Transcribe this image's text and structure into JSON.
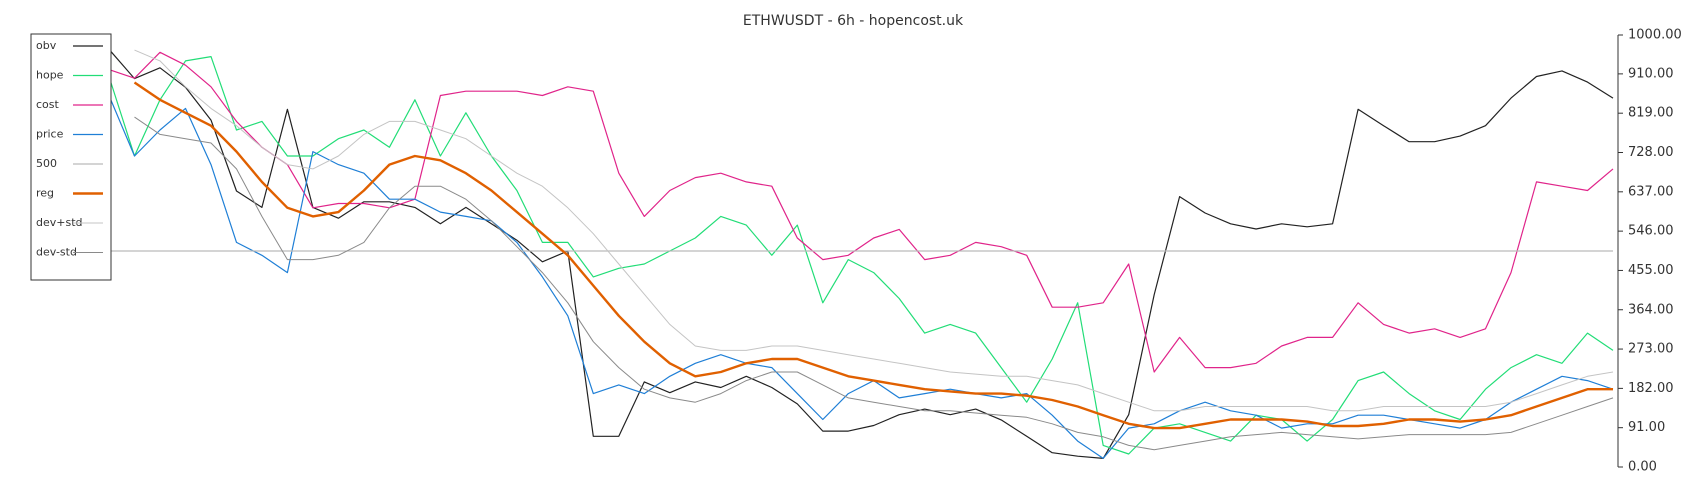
{
  "chart_data": {
    "type": "line",
    "title": "ETHWUSDT - 6h - hopencost.uk",
    "ylim": [
      0,
      1000
    ],
    "yticks": [
      {
        "value": 0,
        "label": "0.00"
      },
      {
        "value": 91,
        "label": "91.00"
      },
      {
        "value": 182,
        "label": "182.00"
      },
      {
        "value": 273,
        "label": "273.00"
      },
      {
        "value": 364,
        "label": "364.00"
      },
      {
        "value": 455,
        "label": "455.00"
      },
      {
        "value": 546,
        "label": "546.00"
      },
      {
        "value": 637,
        "label": "637.00"
      },
      {
        "value": 728,
        "label": "728.00"
      },
      {
        "value": 819,
        "label": "819.00"
      },
      {
        "value": 910,
        "label": "910.00"
      },
      {
        "value": 1000,
        "label": "1000.00"
      }
    ],
    "legend": "upper left",
    "series": [
      {
        "name": "obv",
        "color": "#222222",
        "width": 1.2,
        "values": [
          967,
          899,
          924,
          879,
          803,
          639,
          601,
          828,
          601,
          576,
          614,
          614,
          601,
          563,
          601,
          563,
          525,
          475,
          500,
          71,
          71,
          197,
          172,
          197,
          184,
          210,
          184,
          146,
          83,
          83,
          96,
          121,
          134,
          121,
          134,
          109,
          71,
          33,
          25,
          20,
          121,
          399,
          626,
          588,
          563,
          551,
          563,
          556,
          563,
          828,
          790,
          753,
          753,
          766,
          790,
          854,
          904,
          917,
          891,
          854
        ]
      },
      {
        "name": "hope",
        "color": "#22dd77",
        "width": 1.2,
        "values": [
          904,
          720,
          850,
          940,
          950,
          780,
          800,
          720,
          720,
          760,
          780,
          740,
          850,
          720,
          820,
          720,
          640,
          520,
          520,
          440,
          460,
          470,
          500,
          530,
          580,
          560,
          490,
          560,
          380,
          480,
          450,
          390,
          310,
          330,
          310,
          230,
          150,
          250,
          380,
          50,
          30,
          90,
          100,
          80,
          60,
          120,
          110,
          60,
          110,
          200,
          220,
          170,
          130,
          110,
          180,
          230,
          260,
          240,
          310,
          270
        ]
      },
      {
        "name": "cost",
        "color": "#e0248a",
        "width": 1.2,
        "values": [
          920,
          900,
          960,
          930,
          880,
          800,
          740,
          700,
          600,
          610,
          610,
          600,
          620,
          860,
          870,
          870,
          870,
          860,
          880,
          870,
          680,
          580,
          640,
          670,
          680,
          660,
          650,
          530,
          480,
          490,
          530,
          550,
          480,
          490,
          520,
          510,
          490,
          370,
          370,
          380,
          470,
          220,
          300,
          230,
          230,
          240,
          280,
          300,
          300,
          380,
          330,
          310,
          320,
          300,
          320,
          450,
          660,
          650,
          640,
          690
        ]
      },
      {
        "name": "price",
        "color": "#1f7fd6",
        "width": 1.2,
        "values": [
          860,
          720,
          780,
          830,
          700,
          520,
          490,
          450,
          730,
          700,
          680,
          620,
          620,
          590,
          580,
          570,
          520,
          440,
          350,
          170,
          190,
          170,
          210,
          240,
          260,
          240,
          230,
          170,
          110,
          170,
          200,
          160,
          170,
          180,
          170,
          160,
          170,
          120,
          60,
          20,
          90,
          100,
          130,
          150,
          130,
          120,
          90,
          100,
          100,
          120,
          120,
          110,
          100,
          90,
          110,
          150,
          180,
          210,
          200,
          180
        ]
      },
      {
        "name": "500",
        "color": "#bbbbbb",
        "width": 1.2,
        "values": [
          500,
          500,
          500,
          500,
          500,
          500,
          500,
          500,
          500,
          500,
          500,
          500,
          500,
          500,
          500,
          500,
          500,
          500,
          500,
          500,
          500,
          500,
          500,
          500,
          500,
          500,
          500,
          500,
          500,
          500,
          500,
          500,
          500,
          500,
          500,
          500,
          500,
          500,
          500,
          500,
          500,
          500,
          500,
          500,
          500,
          500,
          500,
          500,
          500,
          500,
          500,
          500,
          500,
          500,
          500,
          500,
          500,
          500,
          500,
          500
        ]
      },
      {
        "name": "reg",
        "color": "#e06000",
        "width": 2.4,
        "values": [
          null,
          890,
          850,
          820,
          790,
          730,
          660,
          600,
          580,
          590,
          640,
          700,
          720,
          710,
          680,
          640,
          590,
          540,
          490,
          420,
          350,
          290,
          240,
          210,
          220,
          240,
          250,
          250,
          230,
          210,
          200,
          190,
          180,
          175,
          170,
          170,
          165,
          155,
          140,
          120,
          100,
          90,
          90,
          100,
          110,
          110,
          110,
          105,
          95,
          95,
          100,
          110,
          110,
          105,
          110,
          120,
          140,
          160,
          180,
          180
        ]
      },
      {
        "name": "dev+std",
        "color": "#c4c4c4",
        "width": 1,
        "values": [
          null,
          965,
          940,
          880,
          830,
          790,
          740,
          700,
          690,
          720,
          770,
          800,
          800,
          780,
          760,
          720,
          680,
          650,
          600,
          540,
          470,
          400,
          330,
          280,
          270,
          270,
          280,
          280,
          270,
          260,
          250,
          240,
          230,
          220,
          215,
          210,
          210,
          200,
          190,
          170,
          150,
          130,
          130,
          140,
          140,
          140,
          140,
          140,
          130,
          130,
          140,
          140,
          140,
          140,
          140,
          150,
          170,
          190,
          210,
          220
        ]
      },
      {
        "name": "dev-std",
        "color": "#8a8a8a",
        "width": 1,
        "values": [
          null,
          810,
          770,
          760,
          750,
          690,
          580,
          480,
          480,
          490,
          520,
          600,
          650,
          650,
          620,
          570,
          510,
          450,
          380,
          290,
          230,
          180,
          160,
          150,
          170,
          200,
          220,
          220,
          190,
          160,
          150,
          140,
          130,
          130,
          125,
          120,
          115,
          100,
          80,
          70,
          50,
          40,
          50,
          60,
          70,
          75,
          80,
          75,
          70,
          65,
          70,
          75,
          75,
          75,
          75,
          80,
          100,
          120,
          140,
          160
        ]
      }
    ]
  }
}
